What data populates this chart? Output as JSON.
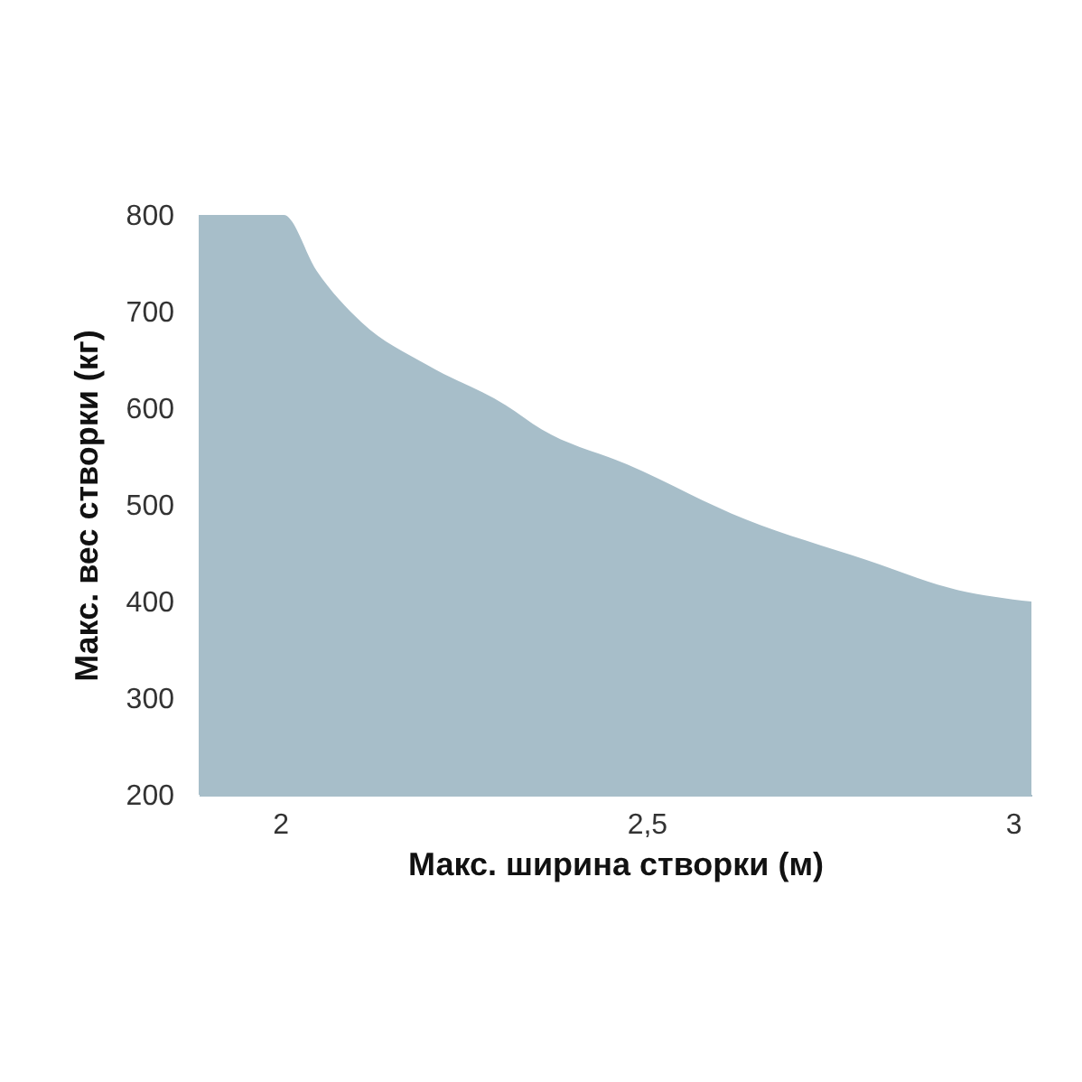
{
  "chart_data": {
    "type": "area",
    "xlabel": "Макс. ширина створки (м)",
    "ylabel": "Макс. вес створки (кг)",
    "x": [
      1.889,
      2.005,
      2.05,
      2.111,
      2.2,
      2.308,
      2.357,
      2.473,
      2.635,
      2.8,
      2.924,
      3.025
    ],
    "series": [
      {
        "color": "#a7bec9",
        "values": [
          800,
          800,
          742,
          689,
          645,
          603,
          578,
          542,
          485,
          443,
          412,
          400
        ]
      }
    ],
    "xlim": [
      1.889,
      3.025
    ],
    "ylim": [
      200,
      800
    ],
    "xticks": [
      2,
      {
        "value": 2.5,
        "label": "2,5"
      },
      3
    ],
    "yticks": [
      200,
      300,
      400,
      500,
      600,
      700,
      800
    ],
    "grid": false
  }
}
